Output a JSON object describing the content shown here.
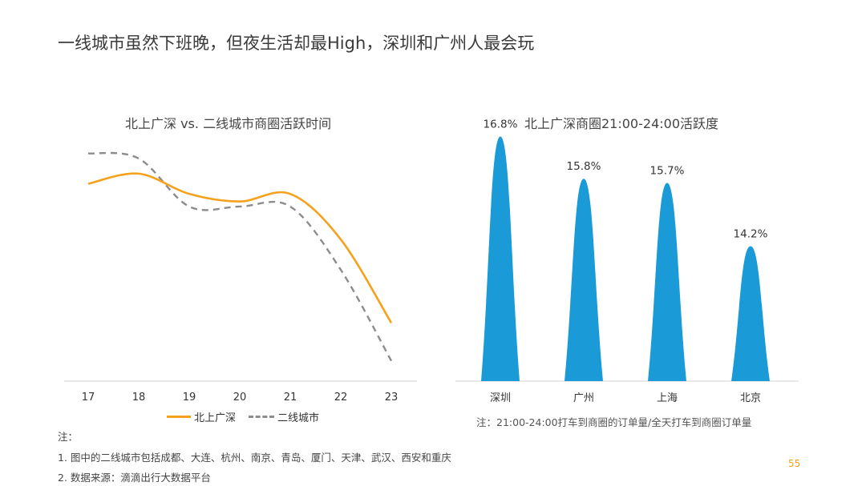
{
  "page": {
    "title": "一线城市虽然下班晚，但夜生活却最High，深圳和广州人最会玩",
    "page_number": "55"
  },
  "notes": {
    "heading": "注：",
    "items": [
      "1.  图中的二线城市包括成都、大连、杭州、南京、青岛、厦门、天津、武汉、西安和重庆",
      "2.  数据来源：滴滴出行大数据平台"
    ]
  },
  "colors": {
    "tier1": "#f5a11c",
    "tier2": "#8c8c8c",
    "peak": "#1a9bd7",
    "axis": "#d0d0d0",
    "accent": "#f5a11c"
  },
  "chart_data": [
    {
      "type": "line",
      "title": "北上广深 vs. 二线城市商圈活跃时间",
      "x": [
        "17",
        "18",
        "19",
        "20",
        "21",
        "22",
        "23"
      ],
      "series": [
        {
          "name": "北上广深",
          "values": [
            0.78,
            0.82,
            0.74,
            0.71,
            0.74,
            0.56,
            0.23
          ]
        },
        {
          "name": "二线城市",
          "values": [
            0.9,
            0.88,
            0.69,
            0.69,
            0.69,
            0.44,
            0.08
          ]
        }
      ],
      "ylim": [
        0,
        1
      ],
      "legend": "bottom",
      "grid": false
    },
    {
      "type": "bar",
      "title": "北上广深商圈21:00-24:00活跃度",
      "categories": [
        "深圳",
        "广州",
        "上海",
        "北京"
      ],
      "values": [
        16.8,
        15.8,
        15.7,
        14.2
      ],
      "value_labels": [
        "16.8%",
        "15.8%",
        "15.7%",
        "14.2%"
      ],
      "ylim": [
        11.0,
        17.0
      ],
      "note": "注：21:00-24:00打车到商圈的订单量/全天打车到商圈订单量"
    }
  ]
}
